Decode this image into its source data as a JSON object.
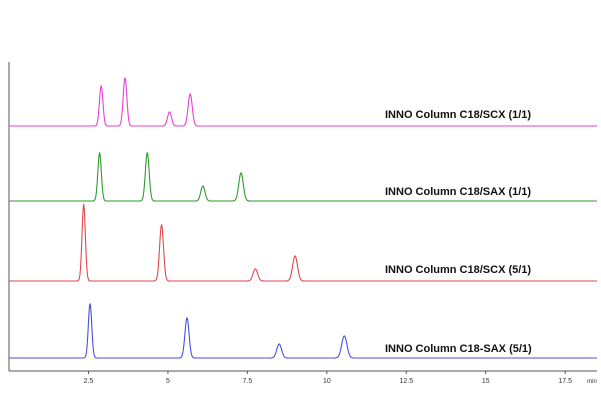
{
  "chart_data": {
    "type": "line",
    "xlabel": "min",
    "xlim": [
      0,
      18.5
    ],
    "xticks": [
      {
        "value": 2.5,
        "label": "2.5"
      },
      {
        "value": 5,
        "label": "5"
      },
      {
        "value": 7.5,
        "label": "7.5"
      },
      {
        "value": 10,
        "label": "10"
      },
      {
        "value": 12.5,
        "label": "12.5"
      },
      {
        "value": 15,
        "label": "15"
      },
      {
        "value": 17.5,
        "label": "17.5"
      }
    ],
    "grid": false,
    "series": [
      {
        "name": "INNO Column C18/SCX (1/1)",
        "color": "#e83fd8",
        "peaks": [
          {
            "x": 2.9,
            "height": 40
          },
          {
            "x": 3.65,
            "height": 48
          },
          {
            "x": 5.05,
            "height": 14
          },
          {
            "x": 5.7,
            "height": 32
          }
        ]
      },
      {
        "name": "INNO Column C18/SAX (1/1)",
        "color": "#2e9a2e",
        "peaks": [
          {
            "x": 2.85,
            "height": 48
          },
          {
            "x": 4.35,
            "height": 48
          },
          {
            "x": 6.1,
            "height": 15
          },
          {
            "x": 7.3,
            "height": 28
          }
        ]
      },
      {
        "name": "INNO Column C18/SCX (5/1)",
        "color": "#e0474a",
        "peaks": [
          {
            "x": 2.35,
            "height": 76
          },
          {
            "x": 4.8,
            "height": 56
          },
          {
            "x": 7.75,
            "height": 12
          },
          {
            "x": 9.0,
            "height": 25
          }
        ]
      },
      {
        "name": "INNO Column C18-SAX (5/1)",
        "color": "#4a4ee0",
        "peaks": [
          {
            "x": 2.55,
            "height": 54
          },
          {
            "x": 5.6,
            "height": 40
          },
          {
            "x": 8.5,
            "height": 14
          },
          {
            "x": 10.55,
            "height": 22
          }
        ]
      }
    ]
  }
}
